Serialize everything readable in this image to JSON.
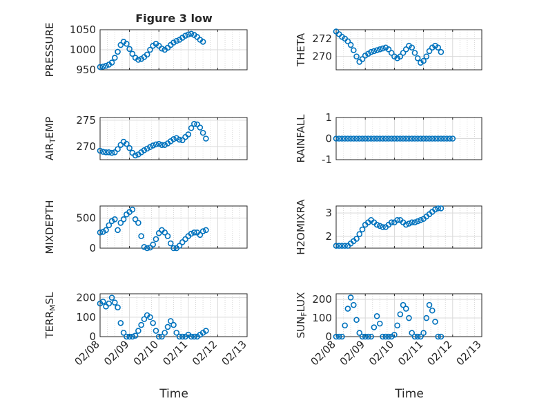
{
  "figure": {
    "title": "Figure 3 low",
    "xlabel": "Time"
  },
  "colors": {
    "marker": "#0072BD",
    "axis": "#262626",
    "grid": "#d9d9d9",
    "background": "#ffffff"
  },
  "chart_data": [
    {
      "type": "scatter",
      "ylabel": "PRESSURE",
      "ylim": [
        950,
        1050
      ],
      "yticks": [
        "950",
        "1000",
        "1050"
      ],
      "xticks": [
        "02/08",
        "02/09",
        "02/10",
        "02/11",
        "02/12",
        "02/13"
      ],
      "xtick_labels_shown": false,
      "grid": true,
      "marker": "open-circle",
      "points": [
        [
          0,
          957
        ],
        [
          0.1,
          958
        ],
        [
          0.2,
          960
        ],
        [
          0.3,
          963
        ],
        [
          0.4,
          968
        ],
        [
          0.5,
          980
        ],
        [
          0.6,
          995
        ],
        [
          0.7,
          1012
        ],
        [
          0.8,
          1020
        ],
        [
          0.9,
          1015
        ],
        [
          1.0,
          1002
        ],
        [
          1.1,
          990
        ],
        [
          1.2,
          980
        ],
        [
          1.3,
          975
        ],
        [
          1.4,
          977
        ],
        [
          1.5,
          982
        ],
        [
          1.6,
          988
        ],
        [
          1.7,
          1000
        ],
        [
          1.8,
          1010
        ],
        [
          1.9,
          1015
        ],
        [
          2.0,
          1010
        ],
        [
          2.1,
          1003
        ],
        [
          2.2,
          1000
        ],
        [
          2.3,
          1005
        ],
        [
          2.4,
          1012
        ],
        [
          2.5,
          1018
        ],
        [
          2.6,
          1022
        ],
        [
          2.7,
          1025
        ],
        [
          2.8,
          1030
        ],
        [
          2.9,
          1035
        ],
        [
          3.0,
          1038
        ],
        [
          3.1,
          1040
        ],
        [
          3.2,
          1037
        ],
        [
          3.3,
          1032
        ],
        [
          3.4,
          1025
        ],
        [
          3.5,
          1020
        ]
      ]
    },
    {
      "type": "scatter",
      "ylabel": "THETA",
      "ylim": [
        268.5,
        273
      ],
      "yticks": [
        "270",
        "272"
      ],
      "xticks": [
        "02/08",
        "02/09",
        "02/10",
        "02/11",
        "02/12",
        "02/13"
      ],
      "xtick_labels_shown": false,
      "grid": true,
      "marker": "open-circle",
      "points": [
        [
          0,
          272.8
        ],
        [
          0.1,
          272.5
        ],
        [
          0.2,
          272.2
        ],
        [
          0.3,
          272.0
        ],
        [
          0.4,
          271.7
        ],
        [
          0.5,
          271.3
        ],
        [
          0.6,
          270.7
        ],
        [
          0.7,
          270.0
        ],
        [
          0.8,
          269.4
        ],
        [
          0.9,
          269.7
        ],
        [
          1.0,
          270.1
        ],
        [
          1.1,
          270.3
        ],
        [
          1.2,
          270.5
        ],
        [
          1.3,
          270.6
        ],
        [
          1.4,
          270.7
        ],
        [
          1.5,
          270.8
        ],
        [
          1.6,
          270.9
        ],
        [
          1.7,
          271.0
        ],
        [
          1.8,
          270.8
        ],
        [
          1.9,
          270.4
        ],
        [
          2.0,
          270.0
        ],
        [
          2.1,
          269.8
        ],
        [
          2.2,
          270.0
        ],
        [
          2.3,
          270.4
        ],
        [
          2.4,
          270.8
        ],
        [
          2.5,
          271.2
        ],
        [
          2.6,
          271.0
        ],
        [
          2.7,
          270.4
        ],
        [
          2.8,
          269.8
        ],
        [
          2.9,
          269.3
        ],
        [
          3.0,
          269.5
        ],
        [
          3.1,
          270.0
        ],
        [
          3.2,
          270.6
        ],
        [
          3.3,
          271.0
        ],
        [
          3.4,
          271.2
        ],
        [
          3.5,
          271.0
        ],
        [
          3.6,
          270.5
        ]
      ]
    },
    {
      "type": "scatter",
      "ylabel_parts": [
        "AIR",
        "T",
        "EMP"
      ],
      "ylim": [
        267.5,
        275.5
      ],
      "yticks": [
        "270",
        "275"
      ],
      "xticks": [
        "02/08",
        "02/09",
        "02/10",
        "02/11",
        "02/12",
        "02/13"
      ],
      "xtick_labels_shown": false,
      "grid": true,
      "marker": "open-circle",
      "points": [
        [
          0,
          269.2
        ],
        [
          0.1,
          269.0
        ],
        [
          0.2,
          268.9
        ],
        [
          0.3,
          268.9
        ],
        [
          0.4,
          268.8
        ],
        [
          0.5,
          268.9
        ],
        [
          0.6,
          269.5
        ],
        [
          0.7,
          270.3
        ],
        [
          0.8,
          270.9
        ],
        [
          0.9,
          270.5
        ],
        [
          1.0,
          269.7
        ],
        [
          1.1,
          268.8
        ],
        [
          1.2,
          268.3
        ],
        [
          1.3,
          268.5
        ],
        [
          1.4,
          268.9
        ],
        [
          1.5,
          269.3
        ],
        [
          1.6,
          269.6
        ],
        [
          1.7,
          269.9
        ],
        [
          1.8,
          270.2
        ],
        [
          1.9,
          270.4
        ],
        [
          2.0,
          270.5
        ],
        [
          2.1,
          270.3
        ],
        [
          2.2,
          270.3
        ],
        [
          2.3,
          270.6
        ],
        [
          2.4,
          271.0
        ],
        [
          2.5,
          271.4
        ],
        [
          2.6,
          271.6
        ],
        [
          2.7,
          271.3
        ],
        [
          2.8,
          271.2
        ],
        [
          2.9,
          271.8
        ],
        [
          3.0,
          272.3
        ],
        [
          3.1,
          273.5
        ],
        [
          3.2,
          274.3
        ],
        [
          3.3,
          274.2
        ],
        [
          3.4,
          273.6
        ],
        [
          3.5,
          272.6
        ],
        [
          3.6,
          271.5
        ]
      ]
    },
    {
      "type": "scatter",
      "ylabel": "RAINFALL",
      "ylim": [
        -1,
        1
      ],
      "yticks": [
        "-1",
        "0",
        "1"
      ],
      "xticks": [
        "02/08",
        "02/09",
        "02/10",
        "02/11",
        "02/12",
        "02/13"
      ],
      "xtick_labels_shown": false,
      "grid": true,
      "marker": "open-circle",
      "points": [
        [
          0,
          0
        ],
        [
          0.1,
          0
        ],
        [
          0.2,
          0
        ],
        [
          0.3,
          0
        ],
        [
          0.4,
          0
        ],
        [
          0.5,
          0
        ],
        [
          0.6,
          0
        ],
        [
          0.7,
          0
        ],
        [
          0.8,
          0
        ],
        [
          0.9,
          0
        ],
        [
          1.0,
          0
        ],
        [
          1.1,
          0
        ],
        [
          1.2,
          0
        ],
        [
          1.3,
          0
        ],
        [
          1.4,
          0
        ],
        [
          1.5,
          0
        ],
        [
          1.6,
          0
        ],
        [
          1.7,
          0
        ],
        [
          1.8,
          0
        ],
        [
          1.9,
          0
        ],
        [
          2.0,
          0
        ],
        [
          2.1,
          0
        ],
        [
          2.2,
          0
        ],
        [
          2.3,
          0
        ],
        [
          2.4,
          0
        ],
        [
          2.5,
          0
        ],
        [
          2.6,
          0
        ],
        [
          2.7,
          0
        ],
        [
          2.8,
          0
        ],
        [
          2.9,
          0
        ],
        [
          3.0,
          0
        ],
        [
          3.1,
          0
        ],
        [
          3.2,
          0
        ],
        [
          3.3,
          0
        ],
        [
          3.4,
          0
        ],
        [
          3.5,
          0
        ],
        [
          3.6,
          0
        ],
        [
          3.7,
          0
        ],
        [
          3.8,
          0
        ],
        [
          3.9,
          0
        ],
        [
          4.0,
          0
        ]
      ]
    },
    {
      "type": "scatter",
      "ylabel": "MIXDEPTH",
      "ylim": [
        0,
        700
      ],
      "yticks": [
        "0",
        "500"
      ],
      "xticks": [
        "02/08",
        "02/09",
        "02/10",
        "02/11",
        "02/12",
        "02/13"
      ],
      "xtick_labels_shown": false,
      "grid": true,
      "marker": "open-circle",
      "points": [
        [
          0,
          260
        ],
        [
          0.1,
          270
        ],
        [
          0.2,
          300
        ],
        [
          0.3,
          380
        ],
        [
          0.4,
          450
        ],
        [
          0.5,
          480
        ],
        [
          0.6,
          300
        ],
        [
          0.7,
          420
        ],
        [
          0.8,
          480
        ],
        [
          0.9,
          560
        ],
        [
          1.0,
          600
        ],
        [
          1.1,
          640
        ],
        [
          1.2,
          480
        ],
        [
          1.3,
          420
        ],
        [
          1.4,
          200
        ],
        [
          1.5,
          20
        ],
        [
          1.6,
          0
        ],
        [
          1.7,
          10
        ],
        [
          1.8,
          60
        ],
        [
          1.9,
          150
        ],
        [
          2.0,
          250
        ],
        [
          2.1,
          300
        ],
        [
          2.2,
          260
        ],
        [
          2.3,
          200
        ],
        [
          2.4,
          80
        ],
        [
          2.5,
          0
        ],
        [
          2.6,
          0
        ],
        [
          2.7,
          40
        ],
        [
          2.8,
          100
        ],
        [
          2.9,
          150
        ],
        [
          3.0,
          200
        ],
        [
          3.1,
          240
        ],
        [
          3.2,
          260
        ],
        [
          3.3,
          260
        ],
        [
          3.4,
          220
        ],
        [
          3.5,
          280
        ],
        [
          3.6,
          300
        ]
      ]
    },
    {
      "type": "scatter",
      "ylabel": "H2OMIXRA",
      "ylim": [
        1.5,
        3.3
      ],
      "yticks": [
        "2",
        "3"
      ],
      "xticks": [
        "02/08",
        "02/09",
        "02/10",
        "02/11",
        "02/12",
        "02/13"
      ],
      "xtick_labels_shown": false,
      "grid": true,
      "marker": "open-circle",
      "points": [
        [
          0,
          1.6
        ],
        [
          0.1,
          1.6
        ],
        [
          0.2,
          1.6
        ],
        [
          0.3,
          1.6
        ],
        [
          0.4,
          1.6
        ],
        [
          0.5,
          1.7
        ],
        [
          0.6,
          1.8
        ],
        [
          0.7,
          1.9
        ],
        [
          0.8,
          2.1
        ],
        [
          0.9,
          2.3
        ],
        [
          1.0,
          2.5
        ],
        [
          1.1,
          2.6
        ],
        [
          1.2,
          2.7
        ],
        [
          1.3,
          2.6
        ],
        [
          1.4,
          2.5
        ],
        [
          1.5,
          2.45
        ],
        [
          1.6,
          2.4
        ],
        [
          1.7,
          2.4
        ],
        [
          1.8,
          2.5
        ],
        [
          1.9,
          2.6
        ],
        [
          2.0,
          2.6
        ],
        [
          2.1,
          2.7
        ],
        [
          2.2,
          2.7
        ],
        [
          2.3,
          2.6
        ],
        [
          2.4,
          2.5
        ],
        [
          2.5,
          2.55
        ],
        [
          2.6,
          2.6
        ],
        [
          2.7,
          2.6
        ],
        [
          2.8,
          2.65
        ],
        [
          2.9,
          2.7
        ],
        [
          3.0,
          2.75
        ],
        [
          3.1,
          2.85
        ],
        [
          3.2,
          2.95
        ],
        [
          3.3,
          3.05
        ],
        [
          3.4,
          3.15
        ],
        [
          3.5,
          3.2
        ],
        [
          3.6,
          3.2
        ]
      ]
    },
    {
      "type": "scatter",
      "ylabel_parts": [
        "TERR",
        "M",
        "SL"
      ],
      "ylim": [
        0,
        220
      ],
      "yticks": [
        "0",
        "100",
        "200"
      ],
      "xticks": [
        "02/08",
        "02/09",
        "02/10",
        "02/11",
        "02/12",
        "02/13"
      ],
      "xtick_labels_shown": true,
      "grid": true,
      "marker": "open-circle",
      "points": [
        [
          0,
          170
        ],
        [
          0.1,
          180
        ],
        [
          0.2,
          155
        ],
        [
          0.3,
          170
        ],
        [
          0.4,
          200
        ],
        [
          0.5,
          175
        ],
        [
          0.6,
          150
        ],
        [
          0.7,
          70
        ],
        [
          0.8,
          20
        ],
        [
          0.9,
          0
        ],
        [
          1.0,
          0
        ],
        [
          1.1,
          0
        ],
        [
          1.2,
          5
        ],
        [
          1.3,
          30
        ],
        [
          1.4,
          60
        ],
        [
          1.5,
          90
        ],
        [
          1.6,
          110
        ],
        [
          1.7,
          100
        ],
        [
          1.8,
          70
        ],
        [
          1.9,
          30
        ],
        [
          2.0,
          0
        ],
        [
          2.1,
          0
        ],
        [
          2.2,
          20
        ],
        [
          2.3,
          50
        ],
        [
          2.4,
          80
        ],
        [
          2.5,
          60
        ],
        [
          2.6,
          20
        ],
        [
          2.7,
          0
        ],
        [
          2.8,
          0
        ],
        [
          2.9,
          0
        ],
        [
          3.0,
          10
        ],
        [
          3.1,
          0
        ],
        [
          3.2,
          0
        ],
        [
          3.3,
          0
        ],
        [
          3.4,
          10
        ],
        [
          3.5,
          20
        ],
        [
          3.6,
          30
        ]
      ]
    },
    {
      "type": "scatter",
      "ylabel_parts": [
        "SUN",
        "F",
        "LUX"
      ],
      "ylim": [
        0,
        230
      ],
      "yticks": [
        "0",
        "100",
        "200"
      ],
      "xticks": [
        "02/08",
        "02/09",
        "02/10",
        "02/11",
        "02/12",
        "02/13"
      ],
      "xtick_labels_shown": true,
      "grid": true,
      "marker": "open-circle",
      "points": [
        [
          0,
          0
        ],
        [
          0.1,
          0
        ],
        [
          0.2,
          0
        ],
        [
          0.3,
          60
        ],
        [
          0.4,
          150
        ],
        [
          0.5,
          210
        ],
        [
          0.6,
          170
        ],
        [
          0.7,
          90
        ],
        [
          0.8,
          20
        ],
        [
          0.9,
          0
        ],
        [
          1.0,
          0
        ],
        [
          1.1,
          0
        ],
        [
          1.2,
          0
        ],
        [
          1.3,
          50
        ],
        [
          1.4,
          110
        ],
        [
          1.5,
          70
        ],
        [
          1.6,
          0
        ],
        [
          1.7,
          0
        ],
        [
          1.8,
          0
        ],
        [
          1.9,
          0
        ],
        [
          2.0,
          10
        ],
        [
          2.1,
          60
        ],
        [
          2.2,
          120
        ],
        [
          2.3,
          170
        ],
        [
          2.4,
          150
        ],
        [
          2.5,
          100
        ],
        [
          2.6,
          20
        ],
        [
          2.7,
          0
        ],
        [
          2.8,
          0
        ],
        [
          2.9,
          0
        ],
        [
          3.0,
          20
        ],
        [
          3.1,
          100
        ],
        [
          3.2,
          170
        ],
        [
          3.3,
          140
        ],
        [
          3.4,
          80
        ],
        [
          3.5,
          0
        ],
        [
          3.6,
          0
        ]
      ]
    }
  ]
}
